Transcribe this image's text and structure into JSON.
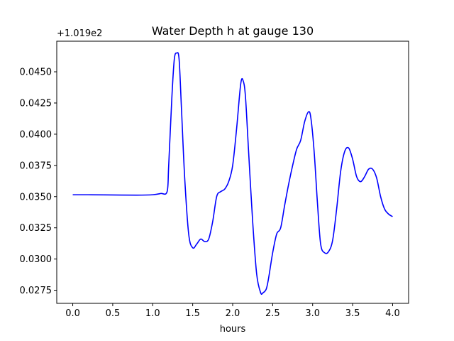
{
  "chart_data": {
    "type": "line",
    "title": "Water Depth h at gauge 130",
    "xlabel": "hours",
    "ylabel": "",
    "y_offset_label": "+1.019e2",
    "xlim": [
      -0.2,
      4.2
    ],
    "ylim": [
      0.02645,
      0.04745
    ],
    "x_ticks": [
      0.0,
      0.5,
      1.0,
      1.5,
      2.0,
      2.5,
      3.0,
      3.5,
      4.0
    ],
    "x_tick_labels": [
      "0.0",
      "0.5",
      "1.0",
      "1.5",
      "2.0",
      "2.5",
      "3.0",
      "3.5",
      "4.0"
    ],
    "y_ticks": [
      0.0275,
      0.03,
      0.0325,
      0.035,
      0.0375,
      0.04,
      0.0425,
      0.045
    ],
    "y_tick_labels": [
      "0.0275",
      "0.0300",
      "0.0325",
      "0.0350",
      "0.0375",
      "0.0400",
      "0.0425",
      "0.0450"
    ],
    "grid": false,
    "line_color": "#0000ff",
    "series": [
      {
        "x": [
          0.0,
          0.2,
          0.5,
          0.8,
          1.0,
          1.1,
          1.18,
          1.2,
          1.24,
          1.27,
          1.3,
          1.33,
          1.36,
          1.4,
          1.45,
          1.5,
          1.55,
          1.6,
          1.65,
          1.7,
          1.75,
          1.8,
          1.85,
          1.9,
          1.95,
          2.0,
          2.05,
          2.1,
          2.13,
          2.16,
          2.2,
          2.25,
          2.3,
          2.35,
          2.38,
          2.42,
          2.45,
          2.5,
          2.55,
          2.6,
          2.65,
          2.7,
          2.75,
          2.8,
          2.85,
          2.9,
          2.95,
          2.98,
          3.02,
          3.06,
          3.1,
          3.15,
          3.2,
          3.25,
          3.3,
          3.35,
          3.4,
          3.45,
          3.5,
          3.55,
          3.6,
          3.65,
          3.7,
          3.75,
          3.8,
          3.85,
          3.9,
          3.95,
          4.0
        ],
        "y": [
          0.03515,
          0.03515,
          0.03513,
          0.03512,
          0.03515,
          0.03525,
          0.0354,
          0.0375,
          0.043,
          0.046,
          0.0465,
          0.046,
          0.042,
          0.0365,
          0.032,
          0.0309,
          0.0312,
          0.0316,
          0.0314,
          0.0316,
          0.033,
          0.035,
          0.0354,
          0.0356,
          0.0362,
          0.0375,
          0.0405,
          0.044,
          0.0443,
          0.043,
          0.0385,
          0.033,
          0.0288,
          0.0273,
          0.0273,
          0.0276,
          0.0285,
          0.0305,
          0.032,
          0.0325,
          0.0343,
          0.036,
          0.0375,
          0.0388,
          0.0395,
          0.041,
          0.0418,
          0.0412,
          0.0385,
          0.0345,
          0.0312,
          0.0305,
          0.0306,
          0.0315,
          0.034,
          0.037,
          0.0386,
          0.0389,
          0.038,
          0.0366,
          0.0362,
          0.0366,
          0.0372,
          0.0372,
          0.0365,
          0.035,
          0.034,
          0.0336,
          0.0334
        ]
      }
    ]
  }
}
